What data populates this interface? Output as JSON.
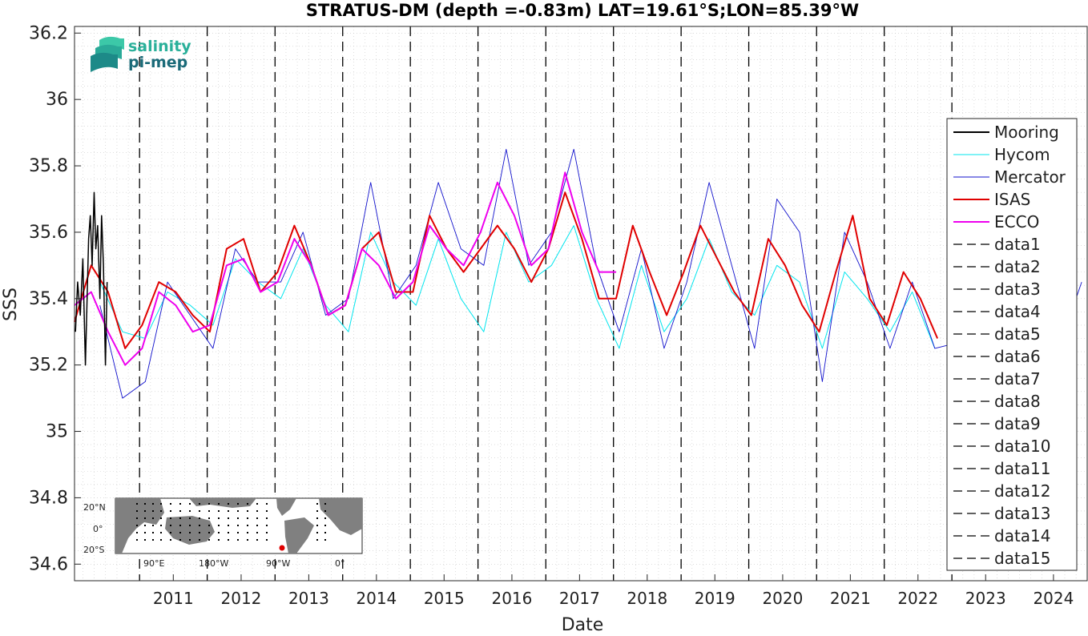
{
  "chart_data": {
    "type": "line",
    "title": "STRATUS-DM (depth =-0.83m) LAT=19.61°S;LON=85.39°W",
    "xlabel": "Date",
    "ylabel": "SSS",
    "xlim": [
      "2010-01-15",
      "2024-12-31"
    ],
    "ylim": [
      34.55,
      36.22
    ],
    "x_ticks": [
      "2011",
      "2012",
      "2013",
      "2014",
      "2015",
      "2016",
      "2017",
      "2018",
      "2019",
      "2020",
      "2021",
      "2022",
      "2023",
      "2024"
    ],
    "y_ticks": [
      "34.6",
      "34.8",
      "35",
      "35.2",
      "35.4",
      "35.6",
      "35.8",
      "36",
      "36.2"
    ],
    "grid": true,
    "legend_position": "right",
    "vertical_lines": [
      "2011-01-01",
      "2012-01-01",
      "2013-01-01",
      "2014-01-01",
      "2015-01-01",
      "2016-01-01",
      "2017-01-01",
      "2018-01-01",
      "2019-01-01",
      "2020-01-01",
      "2021-01-01",
      "2022-01-01",
      "2023-01-01"
    ],
    "series": [
      {
        "name": "Mooring",
        "color": "#000000",
        "x": [
          "2010-01-20",
          "2010-02-01",
          "2010-02-15",
          "2010-03-01",
          "2010-03-15",
          "2010-04-01",
          "2010-04-10",
          "2010-04-20",
          "2010-05-01",
          "2010-05-10",
          "2010-05-20",
          "2010-06-01",
          "2010-06-10",
          "2010-06-20",
          "2010-07-01",
          "2010-07-10"
        ],
        "values": [
          35.3,
          35.45,
          35.35,
          35.52,
          35.2,
          35.58,
          35.65,
          35.5,
          35.72,
          35.55,
          35.62,
          35.4,
          35.65,
          35.5,
          35.2,
          35.45
        ]
      },
      {
        "name": "Hycom",
        "color": "#00e5ee",
        "x": [
          "2010-06-01",
          "2010-10-01",
          "2011-02-01",
          "2011-06-01",
          "2011-10-01",
          "2012-02-01",
          "2012-06-01",
          "2012-10-01",
          "2013-02-01",
          "2013-06-01",
          "2013-10-01",
          "2014-02-01",
          "2014-06-01",
          "2014-10-01",
          "2015-02-01",
          "2015-06-01",
          "2015-10-01",
          "2016-02-01",
          "2016-06-01",
          "2016-10-01",
          "2017-02-01",
          "2017-06-01",
          "2017-10-01",
          "2018-02-01",
          "2018-06-01",
          "2018-10-01",
          "2019-02-01",
          "2019-06-01",
          "2019-10-01",
          "2020-02-01",
          "2020-06-01",
          "2020-10-01",
          "2021-02-01",
          "2021-06-01",
          "2021-10-01",
          "2022-02-01",
          "2022-06-01",
          "2022-10-01"
        ],
        "values": [
          35.45,
          35.3,
          35.28,
          35.42,
          35.38,
          35.32,
          35.52,
          35.45,
          35.4,
          35.55,
          35.38,
          35.3,
          35.6,
          35.45,
          35.38,
          35.58,
          35.4,
          35.3,
          35.6,
          35.45,
          35.5,
          35.62,
          35.4,
          35.25,
          35.5,
          35.3,
          35.4,
          35.58,
          35.42,
          35.35,
          35.5,
          35.45,
          35.25,
          35.48,
          35.4,
          35.3,
          35.42,
          35.25
        ]
      },
      {
        "name": "Mercator",
        "color": "#1010cc",
        "x": [
          "2010-06-01",
          "2010-10-01",
          "2011-02-01",
          "2011-06-01",
          "2011-10-01",
          "2012-02-01",
          "2012-06-01",
          "2012-10-01",
          "2013-02-01",
          "2013-06-01",
          "2013-10-01",
          "2014-02-01",
          "2014-06-01",
          "2014-10-01",
          "2015-02-01",
          "2015-06-01",
          "2015-10-01",
          "2016-02-01",
          "2016-06-01",
          "2016-10-01",
          "2017-02-01",
          "2017-06-01",
          "2017-10-01",
          "2018-02-01",
          "2018-06-01",
          "2018-10-01",
          "2019-02-01",
          "2019-06-01",
          "2019-10-01",
          "2020-02-01",
          "2020-06-01",
          "2020-10-01",
          "2021-02-01",
          "2021-06-01",
          "2021-10-01",
          "2022-02-01",
          "2022-06-01",
          "2022-10-01",
          "2024-10-01",
          "2024-12-01"
        ],
        "values": [
          35.38,
          35.1,
          35.15,
          35.45,
          35.35,
          35.25,
          35.55,
          35.45,
          35.45,
          35.6,
          35.35,
          35.4,
          35.75,
          35.4,
          35.5,
          35.75,
          35.55,
          35.5,
          35.85,
          35.5,
          35.6,
          35.85,
          35.5,
          35.3,
          35.55,
          35.25,
          35.45,
          35.75,
          35.5,
          35.25,
          35.7,
          35.6,
          35.15,
          35.6,
          35.45,
          35.25,
          35.45,
          35.25,
          35.35,
          35.45
        ]
      },
      {
        "name": "ISAS",
        "color": "#e00000",
        "x": [
          "2010-01-15",
          "2010-04-15",
          "2010-07-15",
          "2010-10-15",
          "2011-01-15",
          "2011-04-15",
          "2011-07-15",
          "2011-10-15",
          "2012-01-15",
          "2012-04-15",
          "2012-07-15",
          "2012-10-15",
          "2013-01-15",
          "2013-04-15",
          "2013-07-15",
          "2013-10-15",
          "2014-01-15",
          "2014-04-15",
          "2014-07-15",
          "2014-10-15",
          "2015-01-15",
          "2015-04-15",
          "2015-07-15",
          "2015-10-15",
          "2016-01-15",
          "2016-04-15",
          "2016-07-15",
          "2016-10-15",
          "2017-01-15",
          "2017-04-15",
          "2017-07-15",
          "2017-10-15",
          "2018-01-15",
          "2018-04-15",
          "2018-07-15",
          "2018-10-15",
          "2019-01-15",
          "2019-04-15",
          "2019-07-15",
          "2019-10-15",
          "2020-01-15",
          "2020-04-15",
          "2020-07-15",
          "2020-10-15",
          "2021-01-15",
          "2021-04-15",
          "2021-07-15",
          "2021-10-15",
          "2022-01-15",
          "2022-04-15",
          "2022-07-15",
          "2022-10-15"
        ],
        "values": [
          35.33,
          35.5,
          35.42,
          35.25,
          35.32,
          35.45,
          35.42,
          35.35,
          35.3,
          35.55,
          35.58,
          35.42,
          35.48,
          35.62,
          35.5,
          35.35,
          35.38,
          35.55,
          35.6,
          35.42,
          35.42,
          35.65,
          35.55,
          35.48,
          35.55,
          35.62,
          35.55,
          35.45,
          35.55,
          35.72,
          35.58,
          35.4,
          35.4,
          35.62,
          35.48,
          35.35,
          35.48,
          35.62,
          35.52,
          35.42,
          35.35,
          35.58,
          35.5,
          35.38,
          35.3,
          35.48,
          35.65,
          35.4,
          35.32,
          35.48,
          35.4,
          35.28
        ]
      },
      {
        "name": "ECCO",
        "color": "#ee00ee",
        "x": [
          "2010-01-15",
          "2010-04-15",
          "2010-07-15",
          "2010-10-15",
          "2011-01-15",
          "2011-04-15",
          "2011-07-15",
          "2011-10-15",
          "2012-01-15",
          "2012-04-15",
          "2012-07-15",
          "2012-10-15",
          "2013-01-15",
          "2013-04-15",
          "2013-07-15",
          "2013-10-15",
          "2014-01-15",
          "2014-04-15",
          "2014-07-15",
          "2014-10-15",
          "2015-01-15",
          "2015-04-15",
          "2015-07-15",
          "2015-10-15",
          "2016-01-15",
          "2016-04-15",
          "2016-07-15",
          "2016-10-15",
          "2017-01-15",
          "2017-04-15",
          "2017-07-15",
          "2017-10-15",
          "2018-01-15"
        ],
        "values": [
          35.38,
          35.42,
          35.3,
          35.2,
          35.25,
          35.42,
          35.38,
          35.3,
          35.32,
          35.5,
          35.52,
          35.42,
          35.45,
          35.58,
          35.5,
          35.35,
          35.38,
          35.55,
          35.5,
          35.4,
          35.45,
          35.62,
          35.55,
          35.5,
          35.6,
          35.75,
          35.65,
          35.5,
          35.55,
          35.78,
          35.6,
          35.48,
          35.48
        ]
      }
    ],
    "legend_dashed_entries": [
      "data1",
      "data2",
      "data3",
      "data4",
      "data5",
      "data6",
      "data7",
      "data8",
      "data9",
      "data10",
      "data11",
      "data12",
      "data13",
      "data14",
      "data15"
    ]
  },
  "logo": {
    "line1": "salinity",
    "line2": "pi-mep"
  },
  "inset_map": {
    "lat_labels": [
      "20°N",
      "0°",
      "20°S"
    ],
    "lon_labels": [
      "90°E",
      "180°W",
      "90°W",
      "0°"
    ]
  },
  "colors": {
    "dashed_line": "#000000",
    "grid": "#c8c8c8",
    "land": "#808080"
  }
}
